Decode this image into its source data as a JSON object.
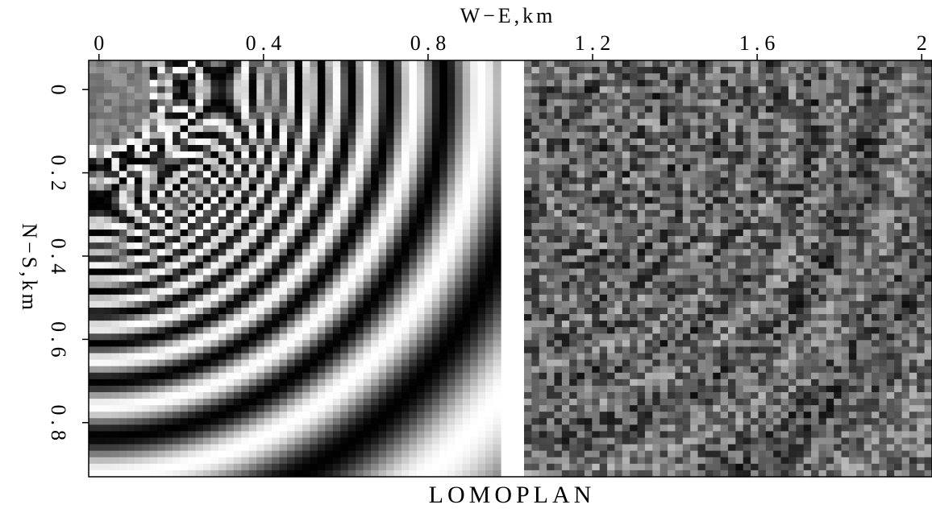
{
  "chart_data": {
    "type": "image",
    "title": "LOMOPLAN",
    "x_label": "W−E,km",
    "y_label": "N−S,km",
    "xlim": [
      -0.025,
      2.025
    ],
    "ylim": [
      -0.07,
      0.93
    ],
    "xticks": [
      0,
      0.4,
      0.8,
      1.2,
      1.6,
      2
    ],
    "yticks": [
      0,
      0.2,
      0.4,
      0.6,
      0.8
    ],
    "y_inverted": true,
    "colormap": "gray"
  }
}
